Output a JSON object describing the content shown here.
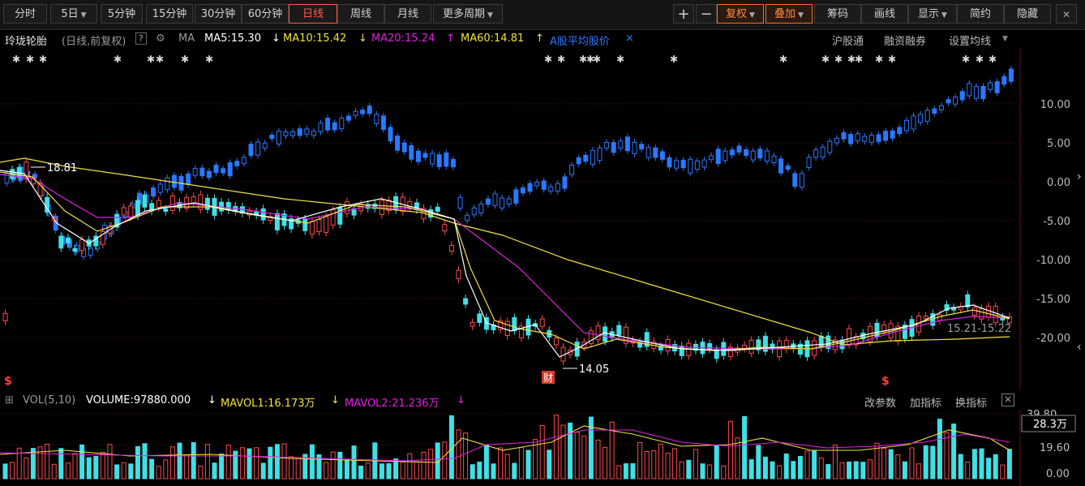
{
  "toolbar": {
    "tabs_left": [
      "分时",
      "5日",
      "5分钟",
      "15分钟",
      "30分钟",
      "60分钟",
      "日线",
      "周线",
      "月线",
      "更多周期"
    ],
    "active_tab": "日线",
    "tools_right": [
      "+",
      "−",
      "复权",
      "叠加",
      "筹码",
      "画线",
      "显示",
      "简约",
      "隐藏"
    ]
  },
  "indicator_bar": {
    "stock_name": "玲珑轮胎",
    "mode": "(日线,前复权)",
    "help": "?",
    "ma_label": "MA",
    "ma5": "MA5:15.30",
    "ma10": "MA10:15.42",
    "ma20": "MA20:15.24",
    "ma60": "MA60:14.81",
    "avg_price": "A股平均股价",
    "close_mark": "×",
    "links": [
      "沪股通",
      "融资融券",
      "设置均线"
    ]
  },
  "price_axis": {
    "labels": [
      "10.00",
      "5.00",
      "0.00",
      "-5.00",
      "-10.00",
      "-15.00",
      "-20.00"
    ],
    "colors": {
      "positive": "#d8d8d8",
      "zero": "#d8d8d8",
      "negative": "#3ccf6a"
    }
  },
  "annotations": {
    "high": "18.81",
    "low": "14.05",
    "range": "15.21-15.22",
    "finance_badge": "财"
  },
  "volume_bar": {
    "label": "VOL(5,10)",
    "volume": "VOLUME:97880.000",
    "mavol1": "MAVOL1:16.173万",
    "mavol2": "MAVOL2:21.236万",
    "actions": [
      "改参数",
      "加指标",
      "换指标"
    ],
    "close": "×",
    "axis": [
      "39.80",
      "28.3万",
      "19.60",
      "0.00"
    ]
  },
  "colors": {
    "up": "#ff4a4a",
    "down": "#3fe0e6",
    "compare": "#2a78ff",
    "ma5": "#ffffff",
    "ma10": "#f0e040",
    "ma20": "#e020e0",
    "ma60": "#f0e040",
    "accent": "#ff5b4d"
  }
}
